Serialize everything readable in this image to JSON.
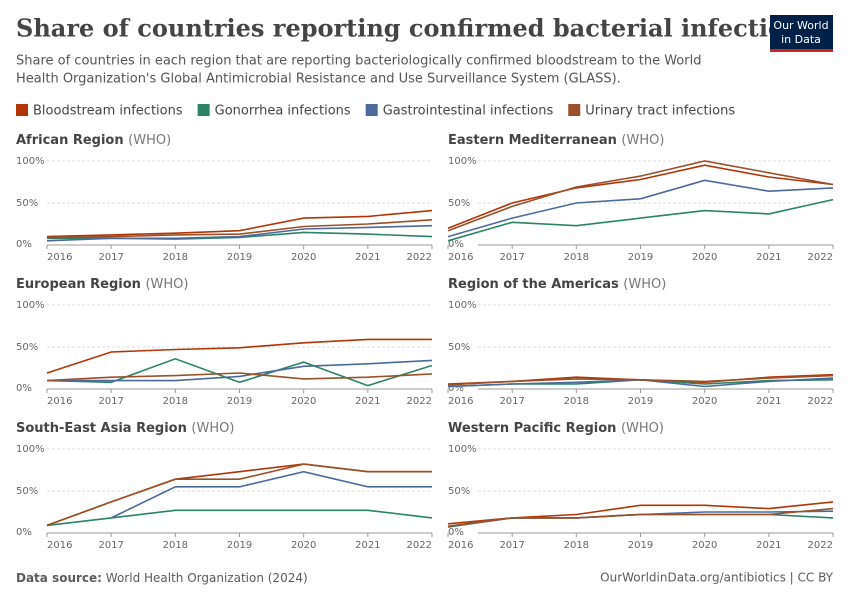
{
  "header": {
    "title": "Share of countries reporting confirmed bacterial infections",
    "subtitle": [
      "Share of countries in each region that are reporting bacteriologically confirmed bloodstream to the World",
      "Health Organization's Global Antimicrobial Resistance and Use Surveillance System (GLASS)."
    ],
    "logo": [
      "Our World",
      "in Data"
    ]
  },
  "legend": [
    {
      "name": "Bloodstream infections",
      "color": "#b13507"
    },
    {
      "name": "Gonorrhea infections",
      "color": "#2c8465"
    },
    {
      "name": "Gastrointestinal infections",
      "color": "#4c6a9c"
    },
    {
      "name": "Urinary tract infections",
      "color": "#9a5129"
    }
  ],
  "chart_data": [
    {
      "type": "line",
      "title": "African Region",
      "title_note": "(WHO)",
      "x": [
        2016,
        2017,
        2018,
        2019,
        2020,
        2021,
        2022
      ],
      "ylim": [
        0,
        100
      ],
      "yticks": [
        {
          "value": 0,
          "label": "0%"
        },
        {
          "value": 50,
          "label": "50%"
        },
        {
          "value": 100,
          "label": "100%"
        }
      ],
      "series": [
        {
          "values": [
            10,
            12,
            14,
            17,
            32,
            34,
            41
          ]
        },
        {
          "values": [
            8,
            8,
            7,
            9,
            15,
            13,
            10
          ]
        },
        {
          "values": [
            5,
            8,
            8,
            10,
            19,
            21,
            23
          ]
        },
        {
          "values": [
            9,
            10,
            12,
            13,
            22,
            25,
            30
          ]
        }
      ]
    },
    {
      "type": "line",
      "title": "Eastern Mediterranean",
      "title_note": "(WHO)",
      "x": [
        2016,
        2017,
        2018,
        2019,
        2020,
        2021,
        2022
      ],
      "ylim": [
        0,
        100
      ],
      "yticks": [
        {
          "value": 0,
          "label": "0%"
        },
        {
          "value": 50,
          "label": "50%"
        },
        {
          "value": 100,
          "label": "100%"
        }
      ],
      "series": [
        {
          "values": [
            20,
            50,
            68,
            78,
            95,
            81,
            72
          ]
        },
        {
          "values": [
            5,
            27,
            23,
            32,
            41,
            37,
            54
          ]
        },
        {
          "values": [
            10,
            32,
            50,
            55,
            77,
            64,
            68
          ]
        },
        {
          "values": [
            17,
            46,
            69,
            82,
            100,
            86,
            72
          ]
        }
      ]
    },
    {
      "type": "line",
      "title": "European Region",
      "title_note": "(WHO)",
      "x": [
        2016,
        2017,
        2018,
        2019,
        2020,
        2021,
        2022
      ],
      "ylim": [
        0,
        100
      ],
      "yticks": [
        {
          "value": 0,
          "label": "0%"
        },
        {
          "value": 50,
          "label": "50%"
        },
        {
          "value": 100,
          "label": "100%"
        }
      ],
      "series": [
        {
          "values": [
            19,
            44,
            47,
            49,
            55,
            59,
            59
          ]
        },
        {
          "values": [
            10,
            8,
            36,
            8,
            32,
            4,
            28
          ]
        },
        {
          "values": [
            10,
            10,
            10,
            15,
            27,
            30,
            34
          ]
        },
        {
          "values": [
            10,
            14,
            16,
            19,
            12,
            14,
            18
          ]
        }
      ]
    },
    {
      "type": "line",
      "title": "Region of the Americas",
      "title_note": "(WHO)",
      "x": [
        2016,
        2017,
        2018,
        2019,
        2020,
        2021,
        2022
      ],
      "ylim": [
        0,
        100
      ],
      "yticks": [
        {
          "value": 0,
          "label": "0%"
        },
        {
          "value": 50,
          "label": "50%"
        },
        {
          "value": 100,
          "label": "100%"
        }
      ],
      "series": [
        {
          "values": [
            6,
            9,
            14,
            11,
            8,
            14,
            17
          ]
        },
        {
          "values": [
            3,
            6,
            6,
            11,
            6,
            10,
            11
          ]
        },
        {
          "values": [
            3,
            6,
            8,
            11,
            3,
            9,
            13
          ]
        },
        {
          "values": [
            5,
            9,
            12,
            11,
            9,
            13,
            16
          ]
        }
      ]
    },
    {
      "type": "line",
      "title": "South-East Asia Region",
      "title_note": "(WHO)",
      "x": [
        2016,
        2017,
        2018,
        2019,
        2020,
        2021,
        2022
      ],
      "ylim": [
        0,
        100
      ],
      "yticks": [
        {
          "value": 0,
          "label": "0%"
        },
        {
          "value": 50,
          "label": "50%"
        },
        {
          "value": 100,
          "label": "100%"
        }
      ],
      "series": [
        {
          "values": [
            9,
            37,
            64,
            73,
            82,
            73,
            73
          ]
        },
        {
          "values": [
            9,
            18,
            27,
            27,
            27,
            27,
            18
          ]
        },
        {
          "values": [
            null,
            18,
            55,
            55,
            73,
            55,
            55
          ]
        },
        {
          "values": [
            9,
            37,
            64,
            64,
            82,
            73,
            73
          ]
        }
      ]
    },
    {
      "type": "line",
      "title": "Western Pacific Region",
      "title_note": "(WHO)",
      "x": [
        2016,
        2017,
        2018,
        2019,
        2020,
        2021,
        2022
      ],
      "ylim": [
        0,
        100
      ],
      "yticks": [
        {
          "value": 0,
          "label": "0%"
        },
        {
          "value": 50,
          "label": "50%"
        },
        {
          "value": 100,
          "label": "100%"
        }
      ],
      "series": [
        {
          "values": [
            11,
            18,
            22,
            33,
            33,
            29,
            37
          ]
        },
        {
          "values": [
            7,
            18,
            18,
            22,
            22,
            22,
            18
          ]
        },
        {
          "values": [
            8,
            18,
            18,
            22,
            25,
            25,
            26
          ]
        },
        {
          "values": [
            8,
            18,
            18,
            22,
            22,
            22,
            29
          ]
        }
      ]
    }
  ],
  "footer": {
    "source_label": "Data source:",
    "source": "World Health Organization (2024)",
    "credit": "OurWorldinData.org/antibiotics | CC BY"
  }
}
